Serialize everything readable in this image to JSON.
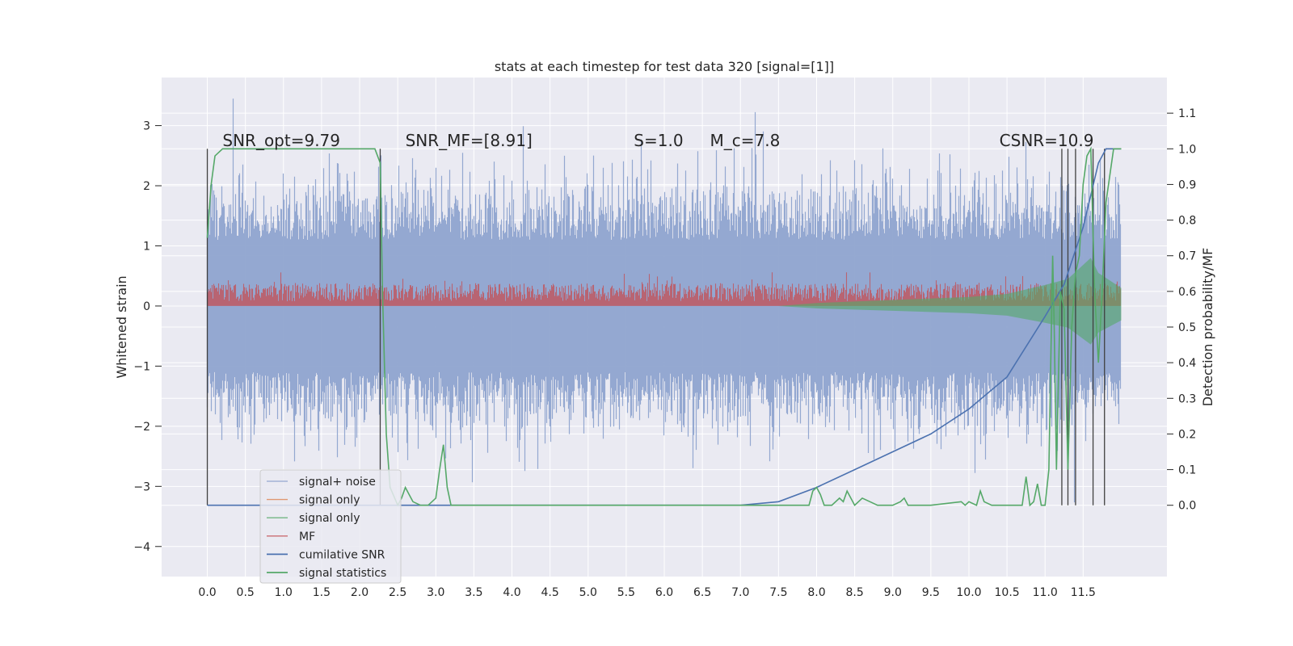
{
  "chart_data": {
    "type": "line",
    "title": "stats at each timestep for test data 320 [signal=[1]]",
    "xlabel": "",
    "ylabel": "Whitened strain",
    "y2label": "Detection probability/MF",
    "xlim": [
      -0.6,
      12.6
    ],
    "ylim": [
      -4.5,
      3.8
    ],
    "y2lim": [
      -0.2,
      1.2
    ],
    "x_ticks": [
      0.0,
      0.5,
      1.0,
      1.5,
      2.0,
      2.5,
      3.0,
      3.5,
      4.0,
      4.5,
      5.0,
      5.5,
      6.0,
      6.5,
      7.0,
      7.5,
      8.0,
      8.5,
      9.0,
      9.5,
      10.0,
      10.5,
      11.0,
      11.5
    ],
    "x_tick_labels": [
      "0.0",
      "0.5",
      "1.0",
      "1.5",
      "2.0",
      "2.5",
      "3.0",
      "3.5",
      "4.0",
      "4.5",
      "5.0",
      "5.5",
      "6.0",
      "6.5",
      "7.0",
      "7.5",
      "8.0",
      "8.5",
      "9.0",
      "9.5",
      "10.0",
      "10.5",
      "11.0",
      "11.5"
    ],
    "y_ticks": [
      -4,
      -3,
      -2,
      -1,
      0,
      1,
      2,
      3
    ],
    "y_tick_labels": [
      "−4",
      "−3",
      "−2",
      "−1",
      "0",
      "1",
      "2",
      "3"
    ],
    "y2_ticks": [
      0.0,
      0.1,
      0.2,
      0.3,
      0.4,
      0.5,
      0.6,
      0.7,
      0.8,
      0.9,
      1.0,
      1.1
    ],
    "y2_tick_labels": [
      "0.0",
      "0.1",
      "0.2",
      "0.3",
      "0.4",
      "0.5",
      "0.6",
      "0.7",
      "0.8",
      "0.9",
      "1.0",
      "1.1"
    ],
    "grid": true,
    "legend_position": "lower-left",
    "annotations": [
      {
        "text": "SNR_opt=9.79",
        "x": 0.2,
        "y": 2.75
      },
      {
        "text": "SNR_MF=[8.91]",
        "x": 2.6,
        "y": 2.75
      },
      {
        "text": "S=1.0",
        "x": 5.6,
        "y": 2.75
      },
      {
        "text": "M_c=7.8",
        "x": 6.6,
        "y": 2.75
      },
      {
        "text": "CSNR=10.9",
        "x": 10.4,
        "y": 2.75
      }
    ],
    "series": [
      {
        "name": "signal+ noise",
        "color": "#8fa4cf",
        "x_range": [
          0.0,
          12.0
        ],
        "amplitude": 2.0,
        "peak": 3.45
      },
      {
        "name": "signal only",
        "color": "#dd8452"
      },
      {
        "name": "signal only",
        "color": "#55a868",
        "envelope": {
          "x": [
            7.5,
            8.0,
            9.0,
            10.0,
            10.5,
            11.0,
            11.3,
            11.6,
            11.7,
            12.0
          ],
          "y": [
            0.0,
            0.05,
            0.1,
            0.15,
            0.2,
            0.35,
            0.45,
            0.8,
            0.55,
            0.3
          ]
        }
      },
      {
        "name": "MF",
        "color": "#c44e52",
        "x_range": [
          0.0,
          12.0
        ],
        "amplitude": 0.3
      },
      {
        "name": "cumilative SNR",
        "color": "#4c72b0",
        "axis": "right",
        "x": [
          0.0,
          6.5,
          7.0,
          7.5,
          8.0,
          8.5,
          9.0,
          9.5,
          10.0,
          10.5,
          11.0,
          11.25,
          11.5,
          11.6,
          11.7,
          11.8,
          12.0
        ],
        "y": [
          0.0,
          0.0,
          0.0,
          0.01,
          0.05,
          0.1,
          0.15,
          0.2,
          0.27,
          0.36,
          0.53,
          0.62,
          0.78,
          0.87,
          0.96,
          1.0,
          1.0
        ]
      },
      {
        "name": "signal statistics",
        "color": "#55a868",
        "axis": "right",
        "x": [
          0.0,
          0.05,
          0.1,
          0.2,
          0.4,
          1.0,
          2.0,
          2.2,
          2.27,
          2.3,
          2.35,
          2.4,
          2.5,
          2.55,
          2.6,
          2.65,
          2.7,
          2.8,
          2.9,
          3.0,
          3.05,
          3.1,
          3.15,
          3.2,
          3.5,
          5.0,
          7.0,
          7.9,
          7.95,
          8.0,
          8.05,
          8.1,
          8.2,
          8.3,
          8.35,
          8.4,
          8.5,
          8.6,
          8.7,
          8.8,
          9.0,
          9.1,
          9.15,
          9.2,
          9.5,
          9.9,
          9.95,
          10.0,
          10.1,
          10.15,
          10.2,
          10.3,
          10.5,
          10.7,
          10.75,
          10.8,
          10.85,
          10.9,
          10.95,
          11.0,
          11.05,
          11.1,
          11.12,
          11.15,
          11.2,
          11.25,
          11.3,
          11.35,
          11.4,
          11.45,
          11.5,
          11.55,
          11.6,
          11.65,
          11.7,
          11.75,
          11.8,
          11.9,
          12.0
        ],
        "y": [
          0.75,
          0.9,
          0.98,
          1.0,
          1.0,
          1.0,
          1.0,
          1.0,
          0.96,
          0.6,
          0.2,
          0.05,
          0.0,
          0.02,
          0.05,
          0.03,
          0.01,
          0.0,
          0.0,
          0.02,
          0.1,
          0.17,
          0.05,
          0.0,
          0.0,
          0.0,
          0.0,
          0.0,
          0.04,
          0.05,
          0.03,
          0.0,
          0.0,
          0.02,
          0.01,
          0.04,
          0.0,
          0.02,
          0.01,
          0.0,
          0.0,
          0.01,
          0.02,
          0.0,
          0.0,
          0.01,
          0.0,
          0.01,
          0.0,
          0.04,
          0.01,
          0.0,
          0.0,
          0.0,
          0.08,
          0.0,
          0.01,
          0.06,
          0.0,
          0.0,
          0.1,
          0.7,
          0.5,
          0.1,
          0.6,
          0.55,
          0.1,
          0.5,
          0.65,
          0.7,
          0.9,
          0.98,
          1.0,
          0.6,
          0.4,
          0.6,
          0.85,
          1.0,
          1.0
        ]
      }
    ],
    "vertical_lines": {
      "color": "#404040",
      "x": [
        0.0,
        2.27,
        11.22,
        11.3,
        11.4,
        11.63,
        11.78
      ]
    }
  }
}
